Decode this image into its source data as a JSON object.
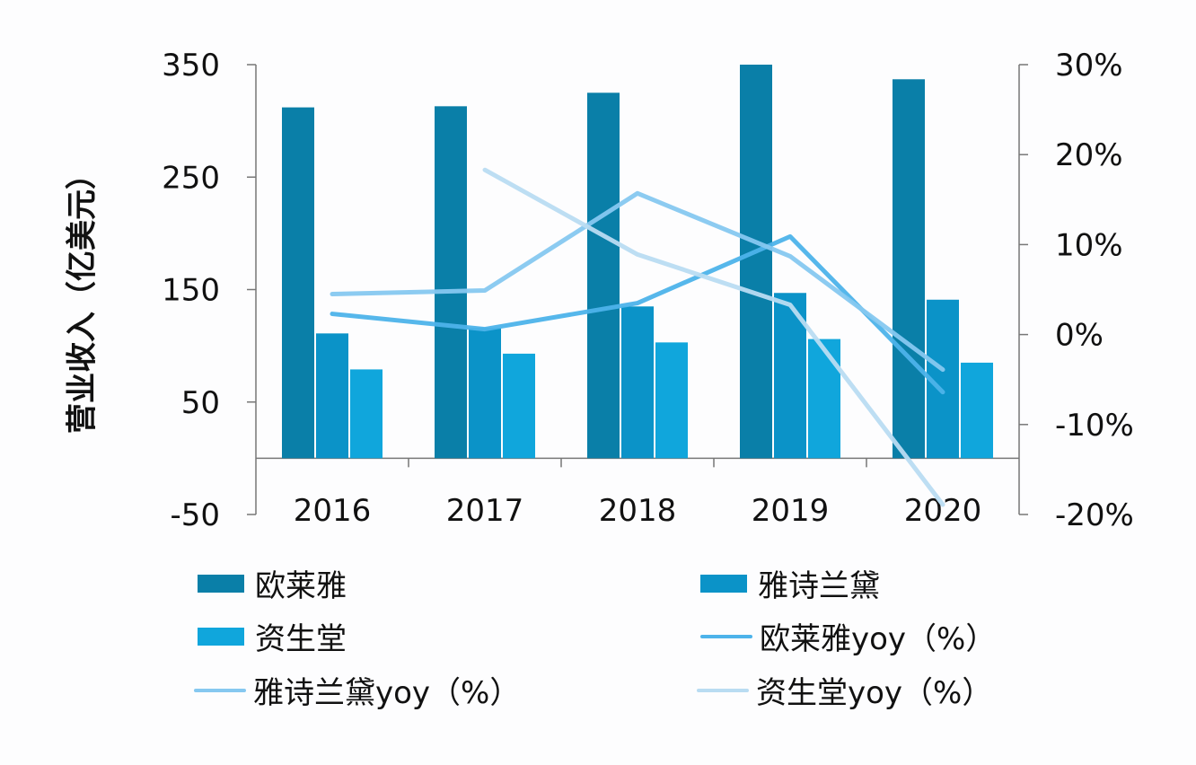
{
  "chart_data": {
    "type": "bar",
    "categories": [
      "2016",
      "2017",
      "2018",
      "2019",
      "2020"
    ],
    "ylabel": "营业收入（亿美元）",
    "ylim": [
      -50,
      350
    ],
    "yticks": [
      "350",
      "250",
      "150",
      "50",
      "-50"
    ],
    "y2lim": [
      -20,
      30
    ],
    "y2ticks": [
      "30%",
      "20%",
      "10%",
      "0%",
      "-10%",
      "-20%"
    ],
    "grid": false,
    "legend_position": "bottom",
    "bar_series": [
      {
        "name": "欧莱雅",
        "values": [
          312,
          313,
          325,
          350,
          337
        ],
        "color": "#0a7fa8"
      },
      {
        "name": "雅诗兰黛",
        "values": [
          111,
          116,
          135,
          147,
          141
        ],
        "color": "#0b93c8"
      },
      {
        "name": "资生堂",
        "values": [
          79,
          93,
          103,
          106,
          85
        ],
        "color": "#10a6dc"
      }
    ],
    "line_series": [
      {
        "name": "欧莱雅yoy（%）",
        "values": [
          2.3,
          0.6,
          3.5,
          10.9,
          -6.4
        ],
        "color": "#4db3ea",
        "axis": "right"
      },
      {
        "name": "雅诗兰黛yoy（%）",
        "values": [
          4.5,
          4.9,
          15.7,
          8.7,
          -3.9
        ],
        "color": "#86c8f0",
        "axis": "right"
      },
      {
        "name": "资生堂yoy（%）",
        "values": [
          null,
          18.3,
          8.9,
          3.3,
          -18.9
        ],
        "color": "#b9dcf2",
        "axis": "right"
      }
    ]
  }
}
